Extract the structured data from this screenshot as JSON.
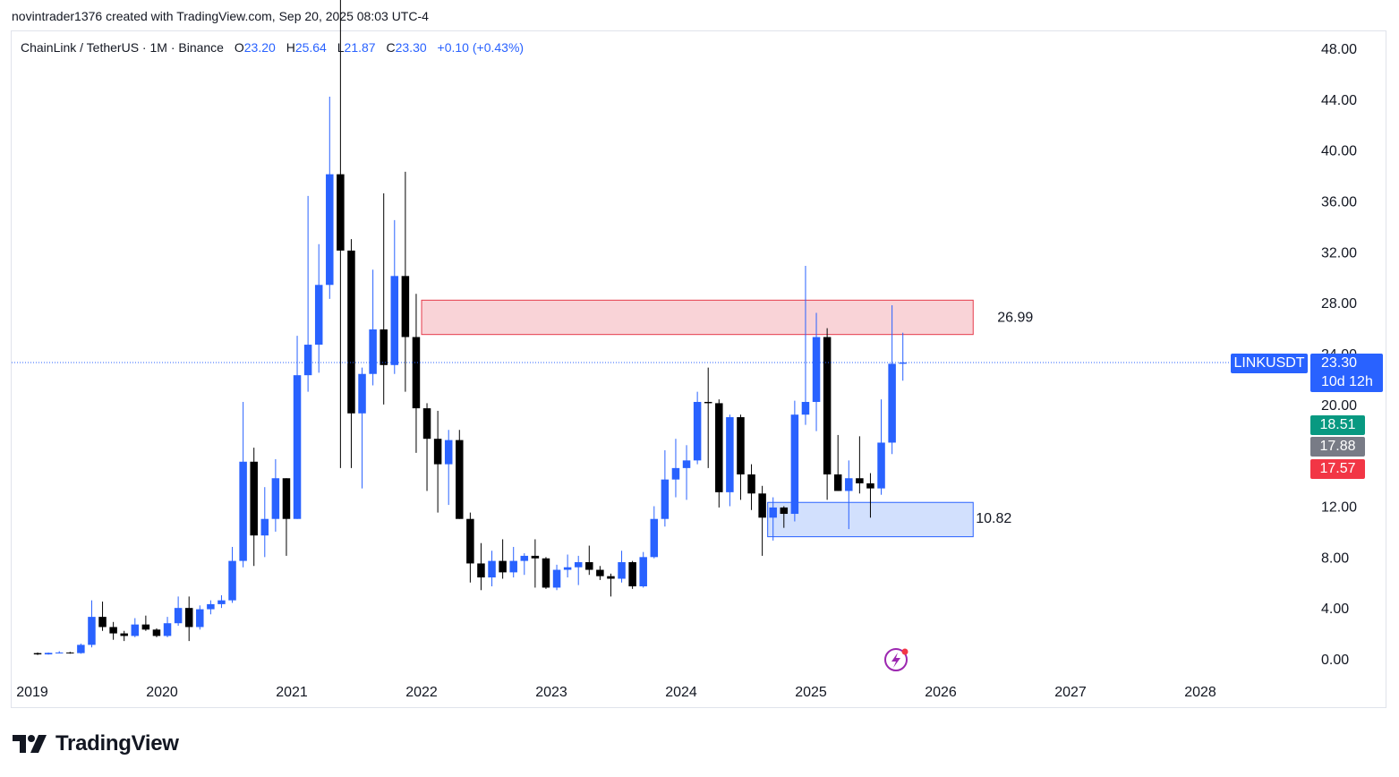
{
  "credit": "novintrader1376 created with TradingView.com, Sep 20, 2025 08:03 UTC-4",
  "header": {
    "symbol": "ChainLink / TetherUS · 1M · Binance",
    "open_label": "O",
    "open": "23.20",
    "high_label": "H",
    "high": "25.64",
    "low_label": "L",
    "low": "21.87",
    "close_label": "C",
    "close": "23.30",
    "change": "+0.10 (+0.43%)"
  },
  "colors": {
    "up": "#2962ff",
    "down": "#000000",
    "resistance_fill": "#f9d3d7",
    "resistance_border": "#e53a4a",
    "support_fill": "#d2e0fd",
    "support_border": "#2962ff",
    "symbol_tag": "#2962ff",
    "tag_green": "#089981",
    "tag_gray": "#787b86",
    "tag_red": "#f23645"
  },
  "tags": {
    "symbol": "LINKUSDT",
    "price": "23.30",
    "countdown": "10d 12h",
    "green": "18.51",
    "gray": "17.88",
    "red": "17.57"
  },
  "brand": {
    "name": "TradingView",
    "icon": "tradingview-logo-icon"
  },
  "chart_data": {
    "type": "candlestick",
    "title": "ChainLink / TetherUS · 1M · Binance",
    "y_ticks": [
      "48.00",
      "44.00",
      "40.00",
      "36.00",
      "32.00",
      "28.00",
      "24.00",
      "20.00",
      "12.00",
      "8.00",
      "4.00",
      "0.00"
    ],
    "x_ticks": [
      "2019",
      "2020",
      "2021",
      "2022",
      "2023",
      "2024",
      "2025",
      "2026",
      "2027",
      "2028"
    ],
    "ylim": [
      0,
      48
    ],
    "current_price": 23.3,
    "zones": [
      {
        "label": "26.99",
        "kind": "resistance",
        "start": "2022-01",
        "end": "2026-03",
        "low": 25.5,
        "high": 28.2
      },
      {
        "label": "10.82",
        "kind": "support",
        "start": "2024-09",
        "end": "2026-03",
        "low": 9.6,
        "high": 12.3
      }
    ],
    "candles": [
      {
        "t": "2019-01",
        "o": 0.45,
        "h": 0.5,
        "l": 0.3,
        "c": 0.35
      },
      {
        "t": "2019-02",
        "o": 0.35,
        "h": 0.5,
        "l": 0.33,
        "c": 0.47
      },
      {
        "t": "2019-03",
        "o": 0.47,
        "h": 0.6,
        "l": 0.42,
        "c": 0.5
      },
      {
        "t": "2019-04",
        "o": 0.5,
        "h": 0.55,
        "l": 0.4,
        "c": 0.45
      },
      {
        "t": "2019-05",
        "o": 0.45,
        "h": 1.2,
        "l": 0.4,
        "c": 1.1
      },
      {
        "t": "2019-06",
        "o": 1.1,
        "h": 4.6,
        "l": 0.9,
        "c": 3.3
      },
      {
        "t": "2019-07",
        "o": 3.3,
        "h": 4.5,
        "l": 2.2,
        "c": 2.5
      },
      {
        "t": "2019-08",
        "o": 2.5,
        "h": 2.9,
        "l": 1.5,
        "c": 2.0
      },
      {
        "t": "2019-09",
        "o": 2.0,
        "h": 2.2,
        "l": 1.4,
        "c": 1.8
      },
      {
        "t": "2019-10",
        "o": 1.8,
        "h": 3.2,
        "l": 1.7,
        "c": 2.7
      },
      {
        "t": "2019-11",
        "o": 2.7,
        "h": 3.4,
        "l": 2.2,
        "c": 2.3
      },
      {
        "t": "2019-12",
        "o": 2.3,
        "h": 2.4,
        "l": 1.7,
        "c": 1.8
      },
      {
        "t": "2020-01",
        "o": 1.8,
        "h": 3.3,
        "l": 1.7,
        "c": 2.8
      },
      {
        "t": "2020-02",
        "o": 2.8,
        "h": 4.9,
        "l": 2.6,
        "c": 4.0
      },
      {
        "t": "2020-03",
        "o": 4.0,
        "h": 4.9,
        "l": 1.4,
        "c": 2.5
      },
      {
        "t": "2020-04",
        "o": 2.5,
        "h": 4.2,
        "l": 2.3,
        "c": 3.9
      },
      {
        "t": "2020-05",
        "o": 3.9,
        "h": 4.6,
        "l": 3.5,
        "c": 4.3
      },
      {
        "t": "2020-06",
        "o": 4.3,
        "h": 5.0,
        "l": 4.0,
        "c": 4.6
      },
      {
        "t": "2020-07",
        "o": 4.6,
        "h": 8.8,
        "l": 4.4,
        "c": 7.7
      },
      {
        "t": "2020-08",
        "o": 7.7,
        "h": 20.2,
        "l": 7.2,
        "c": 15.5
      },
      {
        "t": "2020-09",
        "o": 15.5,
        "h": 16.6,
        "l": 7.3,
        "c": 9.7
      },
      {
        "t": "2020-10",
        "o": 9.7,
        "h": 13.5,
        "l": 8.0,
        "c": 11.0
      },
      {
        "t": "2020-11",
        "o": 11.0,
        "h": 15.7,
        "l": 10.0,
        "c": 14.2
      },
      {
        "t": "2020-12",
        "o": 14.2,
        "h": 14.2,
        "l": 8.1,
        "c": 11.0
      },
      {
        "t": "2021-01",
        "o": 11.0,
        "h": 25.4,
        "l": 11.0,
        "c": 22.3
      },
      {
        "t": "2021-02",
        "o": 22.3,
        "h": 36.4,
        "l": 21.0,
        "c": 24.7
      },
      {
        "t": "2021-03",
        "o": 24.7,
        "h": 32.6,
        "l": 22.5,
        "c": 29.4
      },
      {
        "t": "2021-04",
        "o": 29.4,
        "h": 44.2,
        "l": 28.3,
        "c": 38.1
      },
      {
        "t": "2021-05",
        "o": 38.1,
        "h": 52.0,
        "l": 15.0,
        "c": 32.1
      },
      {
        "t": "2021-06",
        "o": 32.1,
        "h": 33.0,
        "l": 15.0,
        "c": 19.3
      },
      {
        "t": "2021-07",
        "o": 19.3,
        "h": 22.9,
        "l": 13.4,
        "c": 22.4
      },
      {
        "t": "2021-08",
        "o": 22.4,
        "h": 30.6,
        "l": 21.5,
        "c": 25.9
      },
      {
        "t": "2021-09",
        "o": 25.9,
        "h": 36.6,
        "l": 20.0,
        "c": 23.1
      },
      {
        "t": "2021-10",
        "o": 23.1,
        "h": 34.5,
        "l": 22.4,
        "c": 30.1
      },
      {
        "t": "2021-11",
        "o": 30.1,
        "h": 38.3,
        "l": 21.0,
        "c": 25.3
      },
      {
        "t": "2021-12",
        "o": 25.3,
        "h": 28.7,
        "l": 16.2,
        "c": 19.7
      },
      {
        "t": "2022-01",
        "o": 19.7,
        "h": 20.1,
        "l": 13.2,
        "c": 17.3
      },
      {
        "t": "2022-02",
        "o": 17.3,
        "h": 19.5,
        "l": 11.5,
        "c": 15.3
      },
      {
        "t": "2022-03",
        "o": 15.3,
        "h": 18.0,
        "l": 12.1,
        "c": 17.2
      },
      {
        "t": "2022-04",
        "o": 17.2,
        "h": 18.0,
        "l": 11.0,
        "c": 11.0
      },
      {
        "t": "2022-05",
        "o": 11.0,
        "h": 11.5,
        "l": 6.0,
        "c": 7.5
      },
      {
        "t": "2022-06",
        "o": 7.5,
        "h": 9.1,
        "l": 5.4,
        "c": 6.4
      },
      {
        "t": "2022-07",
        "o": 6.4,
        "h": 8.5,
        "l": 5.7,
        "c": 7.7
      },
      {
        "t": "2022-08",
        "o": 7.7,
        "h": 9.4,
        "l": 6.3,
        "c": 6.8
      },
      {
        "t": "2022-09",
        "o": 6.8,
        "h": 8.8,
        "l": 6.4,
        "c": 7.7
      },
      {
        "t": "2022-10",
        "o": 7.7,
        "h": 8.3,
        "l": 6.6,
        "c": 8.1
      },
      {
        "t": "2022-11",
        "o": 8.1,
        "h": 9.4,
        "l": 5.6,
        "c": 7.9
      },
      {
        "t": "2022-12",
        "o": 7.9,
        "h": 8.0,
        "l": 5.5,
        "c": 5.6
      },
      {
        "t": "2023-01",
        "o": 5.6,
        "h": 7.4,
        "l": 5.4,
        "c": 7.0
      },
      {
        "t": "2023-02",
        "o": 7.0,
        "h": 8.2,
        "l": 6.4,
        "c": 7.2
      },
      {
        "t": "2023-03",
        "o": 7.2,
        "h": 8.1,
        "l": 5.8,
        "c": 7.6
      },
      {
        "t": "2023-04",
        "o": 7.6,
        "h": 8.9,
        "l": 6.6,
        "c": 7.0
      },
      {
        "t": "2023-05",
        "o": 7.0,
        "h": 7.3,
        "l": 6.2,
        "c": 6.5
      },
      {
        "t": "2023-06",
        "o": 6.5,
        "h": 6.7,
        "l": 4.9,
        "c": 6.3
      },
      {
        "t": "2023-07",
        "o": 6.3,
        "h": 8.5,
        "l": 6.0,
        "c": 7.6
      },
      {
        "t": "2023-08",
        "o": 7.6,
        "h": 7.7,
        "l": 5.5,
        "c": 5.7
      },
      {
        "t": "2023-09",
        "o": 5.7,
        "h": 8.4,
        "l": 5.6,
        "c": 8.0
      },
      {
        "t": "2023-10",
        "o": 8.0,
        "h": 12.0,
        "l": 7.9,
        "c": 11.0
      },
      {
        "t": "2023-11",
        "o": 11.0,
        "h": 16.4,
        "l": 10.4,
        "c": 14.1
      },
      {
        "t": "2023-12",
        "o": 14.1,
        "h": 17.3,
        "l": 12.7,
        "c": 15.0
      },
      {
        "t": "2024-01",
        "o": 15.0,
        "h": 16.8,
        "l": 12.5,
        "c": 15.6
      },
      {
        "t": "2024-02",
        "o": 15.6,
        "h": 21.0,
        "l": 15.3,
        "c": 20.2
      },
      {
        "t": "2024-03",
        "o": 20.2,
        "h": 22.9,
        "l": 15.0,
        "c": 20.1
      },
      {
        "t": "2024-04",
        "o": 20.1,
        "h": 20.4,
        "l": 11.9,
        "c": 13.1
      },
      {
        "t": "2024-05",
        "o": 13.1,
        "h": 19.2,
        "l": 12.0,
        "c": 19.0
      },
      {
        "t": "2024-06",
        "o": 19.0,
        "h": 19.2,
        "l": 12.5,
        "c": 14.5
      },
      {
        "t": "2024-07",
        "o": 14.5,
        "h": 15.3,
        "l": 11.7,
        "c": 13.0
      },
      {
        "t": "2024-08",
        "o": 13.0,
        "h": 13.6,
        "l": 8.1,
        "c": 11.1
      },
      {
        "t": "2024-09",
        "o": 11.1,
        "h": 12.7,
        "l": 9.3,
        "c": 11.9
      },
      {
        "t": "2024-10",
        "o": 11.9,
        "h": 12.0,
        "l": 10.3,
        "c": 11.4
      },
      {
        "t": "2024-11",
        "o": 11.4,
        "h": 20.3,
        "l": 10.8,
        "c": 19.2
      },
      {
        "t": "2024-12",
        "o": 19.2,
        "h": 30.9,
        "l": 18.4,
        "c": 20.2
      },
      {
        "t": "2025-01",
        "o": 20.2,
        "h": 27.2,
        "l": 17.9,
        "c": 25.3
      },
      {
        "t": "2025-02",
        "o": 25.3,
        "h": 26.0,
        "l": 12.5,
        "c": 14.5
      },
      {
        "t": "2025-03",
        "o": 14.5,
        "h": 17.6,
        "l": 13.2,
        "c": 13.2
      },
      {
        "t": "2025-04",
        "o": 13.2,
        "h": 15.6,
        "l": 10.2,
        "c": 14.2
      },
      {
        "t": "2025-05",
        "o": 14.2,
        "h": 17.5,
        "l": 13.0,
        "c": 13.8
      },
      {
        "t": "2025-06",
        "o": 13.8,
        "h": 14.6,
        "l": 11.1,
        "c": 13.4
      },
      {
        "t": "2025-07",
        "o": 13.4,
        "h": 20.4,
        "l": 12.9,
        "c": 17.0
      },
      {
        "t": "2025-08",
        "o": 17.0,
        "h": 27.8,
        "l": 16.1,
        "c": 23.2
      },
      {
        "t": "2025-09",
        "o": 23.2,
        "h": 25.64,
        "l": 21.87,
        "c": 23.3
      }
    ]
  }
}
